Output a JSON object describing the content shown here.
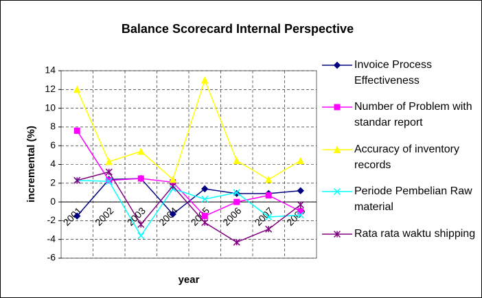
{
  "chart_data": {
    "type": "line",
    "title": "Balance Scorecard Internal Perspective",
    "x_label": "year",
    "y_label": "incremental (%)",
    "categories": [
      "2001",
      "2002",
      "2003",
      "2004",
      "2005",
      "2006",
      "2007",
      "2008"
    ],
    "series": [
      {
        "name": "Invoice Process Effectiveness",
        "color": "#000080",
        "marker": "diamond",
        "values": [
          -1.5,
          2.4,
          2.5,
          -1.3,
          1.4,
          0.9,
          0.9,
          1.2
        ]
      },
      {
        "name": "Number of Problem with standar report",
        "color": "#ff00ff",
        "marker": "square",
        "values": [
          7.6,
          2.3,
          2.5,
          2.1,
          -1.5,
          0.0,
          0.7,
          -1.0
        ]
      },
      {
        "name": "Accuracy of inventory records",
        "color": "#ffff00",
        "marker": "triangle",
        "values": [
          12,
          4.3,
          5.4,
          2.4,
          13,
          4.4,
          2.4,
          4.4
        ]
      },
      {
        "name": "Periode Pembelian Raw material",
        "color": "#00ffff",
        "marker": "x",
        "values": [
          2.3,
          2.2,
          -3.6,
          1.4,
          0.3,
          1.0,
          -1.6,
          -1.4
        ]
      },
      {
        "name": "Rata rata waktu shipping",
        "color": "#800080",
        "marker": "star",
        "values": [
          2.3,
          3.2,
          -2.4,
          1.7,
          -2.2,
          -4.3,
          -2.9,
          -0.3
        ]
      }
    ],
    "ylim": [
      -6,
      14
    ],
    "yticks": [
      -6,
      -4,
      -2,
      0,
      2,
      4,
      6,
      8,
      10,
      12,
      14
    ],
    "grid": true,
    "legend": "right"
  }
}
